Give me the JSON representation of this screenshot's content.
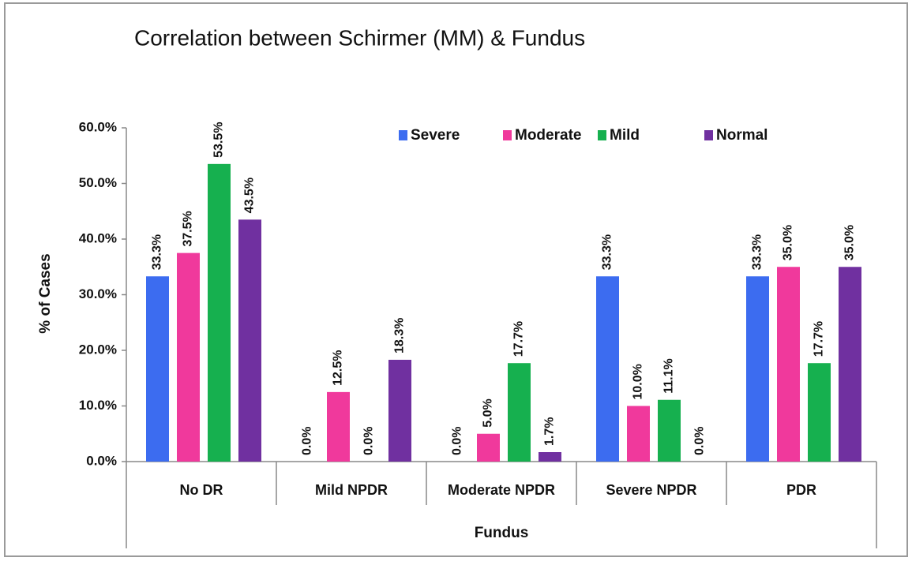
{
  "chart_data": {
    "type": "bar",
    "title": "Correlation between Schirmer (MM) & Fundus",
    "x_label": "Fundus",
    "y_label": "% of Cases",
    "categories": [
      "No DR",
      "Mild NPDR",
      "Moderate NPDR",
      "Severe NPDR",
      "PDR"
    ],
    "series": [
      {
        "name": "Severe",
        "color": "#3c6cf0",
        "values": [
          33.3,
          0,
          0,
          33.3,
          33.3
        ],
        "value_labels": [
          "33.3%",
          "0.0%",
          "0.0%",
          "33.3%",
          "33.3%"
        ]
      },
      {
        "name": "Moderate",
        "color": "#f0399c",
        "values": [
          37.5,
          12.5,
          5.0,
          10.0,
          35.0
        ],
        "value_labels": [
          "37.5%",
          "12.5%",
          "5.0%",
          "10.0%",
          "35.0%"
        ]
      },
      {
        "name": "Mild",
        "color": "#16b04f",
        "values": [
          53.5,
          0,
          17.7,
          11.1,
          17.7
        ],
        "value_labels": [
          "53.5%",
          "0.0%",
          "17.7%",
          "11.1%",
          "17.7%"
        ]
      },
      {
        "name": "Normal",
        "color": "#7030a0",
        "values": [
          43.5,
          18.3,
          1.7,
          0,
          35.0
        ],
        "value_labels": [
          "43.5%",
          "18.3%",
          "1.7%",
          "0.0%",
          "35.0%"
        ]
      }
    ],
    "ylim": [
      0,
      60
    ],
    "yticks": [
      {
        "value": 0,
        "label": "0.0%"
      },
      {
        "value": 10,
        "label": "10.0%"
      },
      {
        "value": 20,
        "label": "20.0%"
      },
      {
        "value": 30,
        "label": "30.0%"
      },
      {
        "value": 40,
        "label": "40.0%"
      },
      {
        "value": 50,
        "label": "50.0%"
      },
      {
        "value": 60,
        "label": "60.0%"
      }
    ],
    "legend": "top-right",
    "grid": false
  }
}
